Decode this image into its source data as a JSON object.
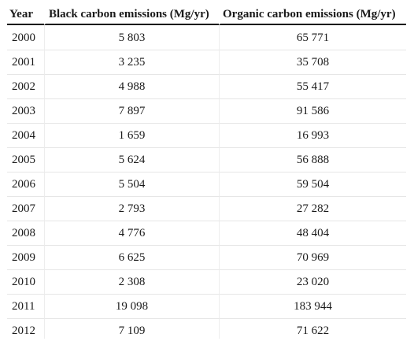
{
  "table": {
    "headers": {
      "year": "Year",
      "black_carbon": "Black carbon emissions (Mg/yr)",
      "organic_carbon": "Organic carbon emissions (Mg/yr)"
    },
    "rows": [
      {
        "year": "2000",
        "black_carbon": "5 803",
        "organic_carbon": "65 771"
      },
      {
        "year": "2001",
        "black_carbon": "3 235",
        "organic_carbon": "35 708"
      },
      {
        "year": "2002",
        "black_carbon": "4 988",
        "organic_carbon": "55 417"
      },
      {
        "year": "2003",
        "black_carbon": "7 897",
        "organic_carbon": "91 586"
      },
      {
        "year": "2004",
        "black_carbon": "1 659",
        "organic_carbon": "16 993"
      },
      {
        "year": "2005",
        "black_carbon": "5 624",
        "organic_carbon": "56 888"
      },
      {
        "year": "2006",
        "black_carbon": "5 504",
        "organic_carbon": "59 504"
      },
      {
        "year": "2007",
        "black_carbon": "2 793",
        "organic_carbon": "27 282"
      },
      {
        "year": "2008",
        "black_carbon": "4 776",
        "organic_carbon": "48 404"
      },
      {
        "year": "2009",
        "black_carbon": "6 625",
        "organic_carbon": "70 969"
      },
      {
        "year": "2010",
        "black_carbon": "2 308",
        "organic_carbon": "23 020"
      },
      {
        "year": "2011",
        "black_carbon": "19 098",
        "organic_carbon": "183 944"
      },
      {
        "year": "2012",
        "black_carbon": "7 109",
        "organic_carbon": "71 622"
      }
    ]
  }
}
